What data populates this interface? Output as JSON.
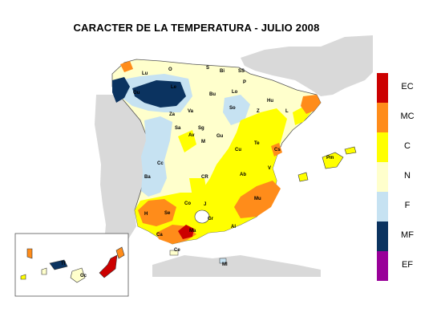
{
  "title": "CARACTER DE LA TEMPERATURA - JULIO 2008",
  "legend": [
    {
      "code": "EC",
      "color": "#cc0000"
    },
    {
      "code": "MC",
      "color": "#ff8c1a"
    },
    {
      "code": "C",
      "color": "#ffff00"
    },
    {
      "code": "N",
      "color": "#ffffcc"
    },
    {
      "code": "F",
      "color": "#c6e2f2"
    },
    {
      "code": "MF",
      "color": "#0b3360"
    },
    {
      "code": "EF",
      "color": "#990099"
    }
  ],
  "cities": [
    "Lu",
    "O",
    "S",
    "Bi",
    "SS",
    "Ou",
    "Le",
    "Bu",
    "Lo",
    "P",
    "Hu",
    "Va",
    "So",
    "Za",
    "L",
    "Sa",
    "Sg",
    "Gu",
    "Av",
    "M",
    "Te",
    "Cs",
    "Z",
    "Cc",
    "Cu",
    "CR",
    "Ab",
    "Ba",
    "V",
    "Co",
    "J",
    "Se",
    "H",
    "Gr",
    "Mu",
    "Ca",
    "Ma",
    "Al",
    "Ce",
    "Ml",
    "Pm",
    "Tf",
    "Gc"
  ]
}
